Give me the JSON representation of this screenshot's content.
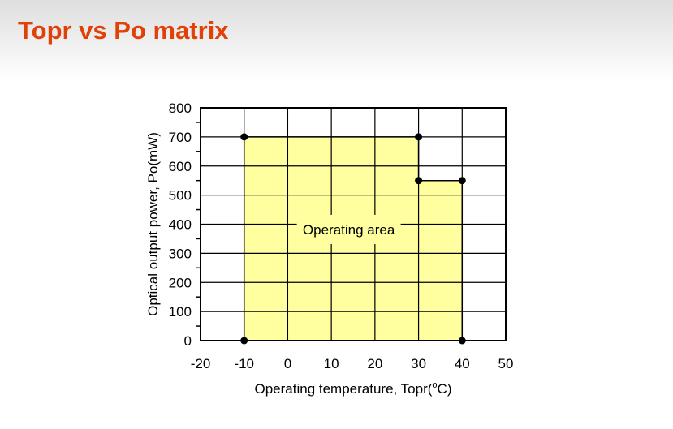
{
  "title": "Topr vs Po matrix",
  "theme": {
    "title_color": "#e04108",
    "background_top": "#dedede",
    "background": "#ffffff",
    "plot_background": "#ffffff",
    "grid_color": "#000000",
    "area_fill": "#ffffa0",
    "line_color": "#000000",
    "marker_color": "#000000",
    "text_color": "#000000"
  },
  "chart_data": {
    "type": "area",
    "title": "",
    "xlabel": "Operating temperature, Topr(°C)",
    "xlabel_parts": {
      "pre": "Operating temperature, Topr(",
      "sup": "o",
      "post": "C)"
    },
    "ylabel": "Optical output power, Po(mW)",
    "xlim": [
      -20,
      50
    ],
    "ylim": [
      0,
      800
    ],
    "xticks": [
      -20,
      -10,
      0,
      10,
      20,
      30,
      40,
      50
    ],
    "yticks": [
      0,
      100,
      200,
      300,
      400,
      500,
      600,
      700,
      800
    ],
    "y_minor_step": 50,
    "grid": true,
    "legend_position": "none",
    "series": [
      {
        "name": "Operating area boundary",
        "points": [
          [
            -10,
            0
          ],
          [
            -10,
            700
          ],
          [
            30,
            700
          ],
          [
            30,
            550
          ],
          [
            40,
            550
          ],
          [
            40,
            0
          ]
        ],
        "fill": "#ffffa0",
        "stroke": "#000000",
        "markers": true
      }
    ],
    "annotation": {
      "text": "Operating area",
      "x": 14,
      "y": 382
    }
  }
}
